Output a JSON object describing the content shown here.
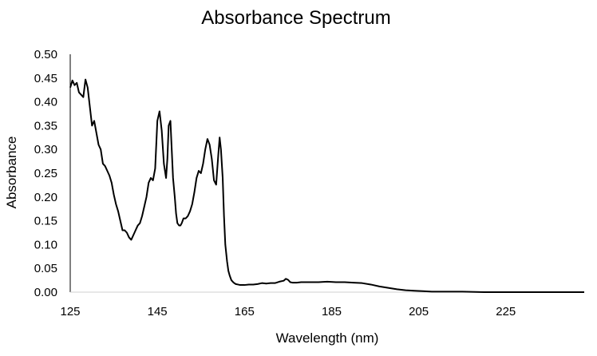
{
  "chart_data": {
    "type": "line",
    "title": "Absorbance Spectrum",
    "xlabel": "Wavelength (nm)",
    "ylabel": "Absorbance",
    "xlim": [
      125,
      243
    ],
    "ylim": [
      0,
      0.5
    ],
    "x_ticks": [
      125,
      145,
      165,
      185,
      205,
      225
    ],
    "x_tick_labels": [
      "125",
      "145",
      "165",
      "185",
      "205",
      "225"
    ],
    "y_ticks": [
      0,
      0.05,
      0.1,
      0.15,
      0.2,
      0.25,
      0.3,
      0.35,
      0.4,
      0.45,
      0.5
    ],
    "y_tick_labels": [
      "0.00",
      "0.05",
      "0.10",
      "0.15",
      "0.20",
      "0.25",
      "0.30",
      "0.35",
      "0.40",
      "0.45",
      "0.50"
    ],
    "grid": false,
    "legend": "none",
    "line_color": "#000000",
    "series": [
      {
        "x": [
          125.0,
          125.5,
          126.0,
          126.5,
          127.0,
          127.5,
          128.0,
          128.5,
          129.0,
          129.5,
          130.0,
          130.5,
          131.0,
          131.5,
          132.0,
          132.5,
          133.0,
          133.5,
          134.0,
          134.5,
          135.0,
          135.5,
          136.0,
          136.5,
          137.0,
          137.5,
          138.0,
          138.5,
          139.0,
          139.5,
          140.0,
          140.5,
          141.0,
          141.5,
          142.0,
          142.5,
          143.0,
          143.5,
          144.0,
          144.5,
          145.0,
          145.5,
          146.0,
          146.5,
          147.0,
          147.3,
          147.6,
          148.0,
          148.3,
          148.6,
          149.0,
          149.3,
          149.6,
          150.0,
          150.3,
          150.6,
          151.0,
          151.5,
          152.0,
          152.5,
          153.0,
          153.5,
          154.0,
          154.5,
          155.0,
          155.5,
          156.0,
          156.5,
          157.0,
          157.5,
          158.0,
          158.5,
          159.0,
          159.3,
          159.6,
          160.0,
          160.3,
          160.6,
          161.0,
          161.3,
          161.6,
          162.0,
          162.5,
          163.0,
          163.5,
          164.0,
          164.5,
          165.0,
          166.0,
          167.0,
          168.0,
          169.0,
          170.0,
          171.0,
          172.0,
          173.0,
          174.0,
          174.5,
          175.0,
          175.5,
          176.0,
          177.0,
          178.0,
          180.0,
          182.0,
          184.0,
          186.0,
          188.0,
          190.0,
          192.0,
          194.0,
          196.0,
          198.0,
          200.0,
          202.0,
          204.0,
          206.0,
          208.0,
          210.0,
          215.0,
          220.0,
          225.0,
          230.0,
          235.0,
          240.0,
          243.0
        ],
        "y": [
          0.43,
          0.445,
          0.435,
          0.44,
          0.42,
          0.415,
          0.41,
          0.447,
          0.43,
          0.39,
          0.35,
          0.36,
          0.335,
          0.31,
          0.3,
          0.27,
          0.265,
          0.255,
          0.245,
          0.23,
          0.205,
          0.185,
          0.17,
          0.15,
          0.13,
          0.13,
          0.125,
          0.115,
          0.11,
          0.12,
          0.13,
          0.14,
          0.145,
          0.16,
          0.18,
          0.2,
          0.23,
          0.24,
          0.235,
          0.26,
          0.36,
          0.38,
          0.34,
          0.27,
          0.24,
          0.28,
          0.35,
          0.36,
          0.3,
          0.24,
          0.2,
          0.165,
          0.145,
          0.14,
          0.14,
          0.145,
          0.155,
          0.155,
          0.16,
          0.17,
          0.185,
          0.21,
          0.24,
          0.255,
          0.25,
          0.27,
          0.3,
          0.322,
          0.31,
          0.28,
          0.235,
          0.226,
          0.29,
          0.325,
          0.3,
          0.24,
          0.16,
          0.1,
          0.065,
          0.045,
          0.035,
          0.025,
          0.02,
          0.017,
          0.016,
          0.015,
          0.015,
          0.015,
          0.016,
          0.016,
          0.017,
          0.019,
          0.018,
          0.019,
          0.019,
          0.022,
          0.024,
          0.028,
          0.026,
          0.021,
          0.02,
          0.02,
          0.021,
          0.021,
          0.021,
          0.022,
          0.021,
          0.021,
          0.02,
          0.019,
          0.016,
          0.012,
          0.009,
          0.006,
          0.004,
          0.003,
          0.002,
          0.001,
          0.001,
          0.001,
          0.0,
          0.0,
          0.0,
          0.0,
          0.0,
          0.0
        ]
      }
    ]
  }
}
